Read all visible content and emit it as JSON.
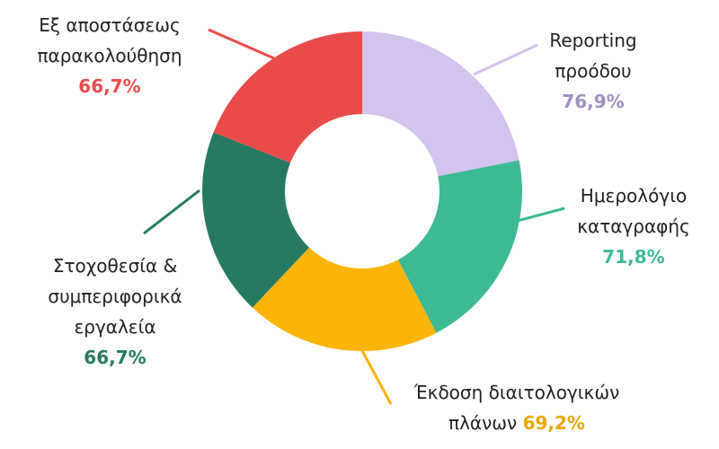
{
  "chart_data": {
    "type": "donut",
    "categories": [
      "Reporting προόδου",
      "Ημερολόγιο καταγραφής",
      "Έκδοση διαιτολογικών πλάνων",
      "Στοχοθεσία & συμπεριφορικά εργαλεία",
      "Εξ αποστάσεως παρακολούθηση"
    ],
    "values": [
      76.9,
      71.8,
      69.2,
      66.7,
      66.7
    ],
    "value_labels": [
      "76,9%",
      "71,8%",
      "69,2%",
      "66,7%",
      "66,7%"
    ],
    "colors": [
      "#d3c3ef",
      "#3dba95",
      "#fbb40a",
      "#277a62",
      "#e94b4a"
    ],
    "label_colors": [
      "#a08fc4",
      "#3dba95",
      "#e9a800",
      "#277a62",
      "#e94b4a"
    ]
  }
}
